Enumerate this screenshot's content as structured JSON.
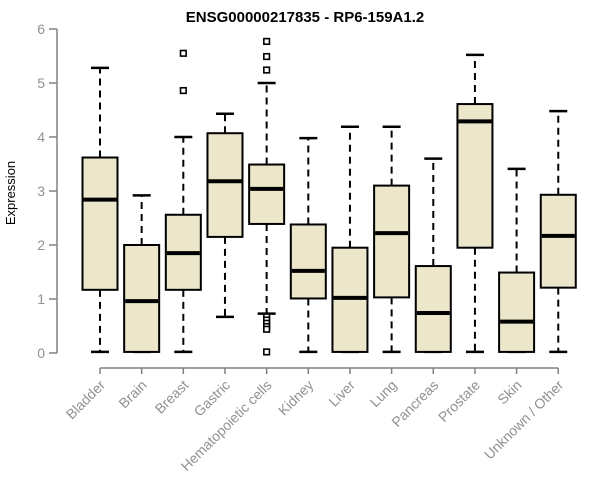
{
  "page": {
    "background": "#ffffff"
  },
  "chart_data": {
    "type": "boxplot",
    "title": "ENSG00000217835 - RP6-159A1.2",
    "ylabel": "Expression",
    "xlabel": "",
    "ylim": [
      0,
      6
    ],
    "yticks": [
      0,
      1,
      2,
      3,
      4,
      5,
      6
    ],
    "grid": false,
    "legend": "none",
    "categories": [
      "Bladder",
      "Brain",
      "Breast",
      "Gastric",
      "Hematopoietic cells",
      "Kidney",
      "Liver",
      "Lung",
      "Pancreas",
      "Prostate",
      "Skin",
      "Unknown / Other"
    ],
    "series": [
      {
        "name": "Bladder",
        "whisker_low": 0.02,
        "q1": 1.17,
        "median": 2.84,
        "q3": 3.62,
        "whisker_high": 5.28,
        "outliers": []
      },
      {
        "name": "Brain",
        "whisker_low": 0.02,
        "q1": 0.02,
        "median": 0.96,
        "q3": 2.0,
        "whisker_high": 2.92,
        "outliers": []
      },
      {
        "name": "Breast",
        "whisker_low": 0.02,
        "q1": 1.17,
        "median": 1.85,
        "q3": 2.56,
        "whisker_high": 4.0,
        "outliers": [
          4.86,
          5.55
        ]
      },
      {
        "name": "Gastric",
        "whisker_low": 0.67,
        "q1": 2.15,
        "median": 3.18,
        "q3": 4.07,
        "whisker_high": 4.43,
        "outliers": []
      },
      {
        "name": "Hematopoietic cells",
        "whisker_low": 0.73,
        "q1": 2.39,
        "median": 3.04,
        "q3": 3.49,
        "whisker_high": 5.0,
        "outliers": [
          5.77,
          5.49,
          5.24,
          0.67,
          0.61,
          0.55,
          0.49,
          0.44,
          0.02
        ]
      },
      {
        "name": "Kidney",
        "whisker_low": 0.02,
        "q1": 1.01,
        "median": 1.52,
        "q3": 2.38,
        "whisker_high": 3.98,
        "outliers": []
      },
      {
        "name": "Liver",
        "whisker_low": 0.02,
        "q1": 0.02,
        "median": 1.02,
        "q3": 1.95,
        "whisker_high": 4.19,
        "outliers": []
      },
      {
        "name": "Lung",
        "whisker_low": 0.02,
        "q1": 1.03,
        "median": 2.22,
        "q3": 3.1,
        "whisker_high": 4.19,
        "outliers": []
      },
      {
        "name": "Pancreas",
        "whisker_low": 0.02,
        "q1": 0.02,
        "median": 0.74,
        "q3": 1.61,
        "whisker_high": 3.6,
        "outliers": []
      },
      {
        "name": "Prostate",
        "whisker_low": 0.02,
        "q1": 1.95,
        "median": 4.29,
        "q3": 4.61,
        "whisker_high": 5.52,
        "outliers": []
      },
      {
        "name": "Skin",
        "whisker_low": 0.02,
        "q1": 0.02,
        "median": 0.58,
        "q3": 1.49,
        "whisker_high": 3.41,
        "outliers": []
      },
      {
        "name": "Unknown / Other",
        "whisker_low": 0.02,
        "q1": 1.21,
        "median": 2.17,
        "q3": 2.93,
        "whisker_high": 4.48,
        "outliers": []
      }
    ],
    "colors": {
      "box_fill": "#ece7cb",
      "box_border": "#000000",
      "median": "#000000",
      "whisker": "#000000",
      "outlier": "#000000",
      "axis": "#808080",
      "tick_label": "#919191",
      "title": "#000000"
    }
  }
}
